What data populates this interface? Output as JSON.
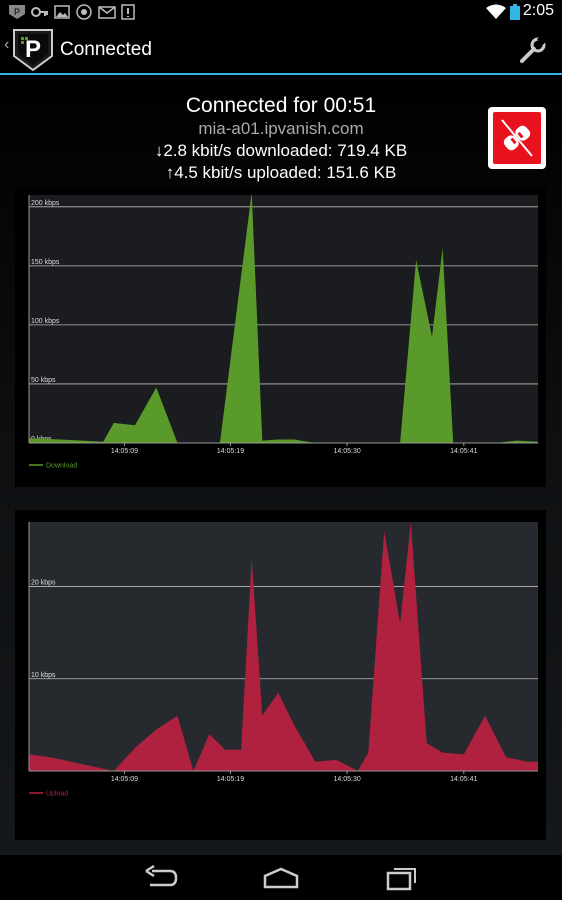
{
  "status_bar": {
    "time": "2:05"
  },
  "action_bar": {
    "title": "Connected"
  },
  "info": {
    "connected_for": "Connected for 00:51",
    "server": "mia-a01.ipvanish.com",
    "download_line": "↓2.8 kbit/s downloaded: 719.4 KB",
    "upload_line": "↑4.5 kbit/s uploaded: 151.6 KB"
  },
  "colors": {
    "accent": "#33b5e5",
    "download": "#5a9a2a",
    "upload": "#b0203f",
    "disconnect": "#e8121f"
  },
  "chart_data": [
    {
      "type": "area",
      "legend": "Download",
      "ylim": [
        0,
        210
      ],
      "yticks": [
        0,
        50,
        100,
        150,
        200
      ],
      "ytick_labels": [
        "0 kbps",
        "50 kbps",
        "100 kbps",
        "150 kbps",
        "200 kbps"
      ],
      "xticks": [
        "14:05:09",
        "14:05:19",
        "14:05:30",
        "14:05:41"
      ],
      "xtick_positions": [
        9,
        19,
        30,
        41
      ],
      "xlim": [
        0,
        48
      ],
      "x": [
        0,
        3,
        5,
        7,
        8,
        10,
        12,
        14,
        16,
        18,
        21,
        22,
        23.5,
        25,
        27,
        29,
        31,
        33,
        35,
        36.5,
        38,
        39,
        40,
        41,
        42,
        44,
        46,
        48
      ],
      "values": [
        4,
        3,
        2,
        1,
        17,
        15,
        47,
        0,
        0,
        0,
        212,
        2,
        3,
        3,
        0,
        0,
        0,
        0,
        0,
        155,
        90,
        165,
        0,
        0,
        0,
        0,
        2,
        1
      ],
      "color": "#5a9a2a"
    },
    {
      "type": "area",
      "legend": "Upload",
      "ylim": [
        0,
        27
      ],
      "yticks": [
        10,
        20
      ],
      "ytick_labels": [
        "10 kbps",
        "20 kbps"
      ],
      "xticks": [
        "14:05:09",
        "14:05:19",
        "14:05:30",
        "14:05:41"
      ],
      "xtick_positions": [
        9,
        19,
        30,
        41
      ],
      "xlim": [
        0,
        48
      ],
      "x": [
        0,
        2,
        4,
        6,
        8,
        10,
        12,
        14,
        15.5,
        17,
        18.5,
        20,
        21,
        22,
        23.5,
        25,
        27,
        29,
        31,
        32,
        33.5,
        35,
        36,
        37.5,
        39,
        41,
        43,
        45,
        47,
        48
      ],
      "values": [
        1.8,
        1.5,
        1,
        0.5,
        0,
        2.5,
        4.5,
        6,
        0,
        4,
        2.3,
        2.3,
        23,
        6,
        8.5,
        5,
        1,
        1.2,
        0,
        2,
        26,
        16,
        27,
        3,
        2,
        1.8,
        6,
        1.5,
        1,
        1
      ],
      "color": "#b0203f"
    }
  ]
}
